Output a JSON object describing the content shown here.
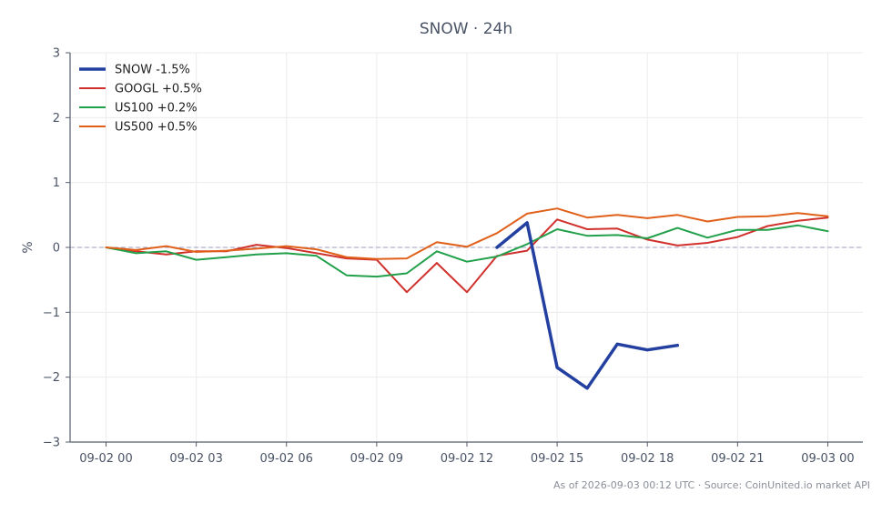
{
  "footer_text": "As of 2026-09-03 00:12 UTC · Source: CoinUnited.io market API",
  "chart_data": {
    "type": "line",
    "title": "SNOW · 24h",
    "xlabel": "",
    "ylabel": "%",
    "ylim": [
      -3,
      3
    ],
    "yticks": [
      3,
      2,
      1,
      0,
      -1,
      -2,
      -3
    ],
    "ytick_labels": [
      "3",
      "2",
      "1",
      "0",
      "−1",
      "−2",
      "−3"
    ],
    "xtick_labels": [
      "09-02 00",
      "09-02 03",
      "09-02 06",
      "09-02 09",
      "09-02 12",
      "09-02 15",
      "09-02 18",
      "09-02 21",
      "09-03 00"
    ],
    "x_hours": [
      0,
      1,
      2,
      3,
      4,
      5,
      6,
      7,
      8,
      9,
      10,
      11,
      12,
      13,
      14,
      15,
      16,
      17,
      18,
      19,
      20,
      21,
      22,
      23,
      24
    ],
    "grid": true,
    "zero_line": true,
    "legend_position": "top-left",
    "series": [
      {
        "name": "SNOW -1.5%",
        "color": "#2340a0",
        "values": [
          null,
          null,
          null,
          null,
          null,
          null,
          null,
          null,
          null,
          null,
          null,
          null,
          null,
          0.0,
          0.38,
          -1.85,
          -2.17,
          -1.49,
          -1.58,
          -1.51,
          null,
          null,
          null,
          null,
          null
        ]
      },
      {
        "name": "GOOGL +0.5%",
        "color": "#d0312d",
        "values": [
          0.0,
          -0.06,
          -0.11,
          -0.06,
          -0.06,
          0.04,
          -0.01,
          -0.09,
          -0.17,
          -0.19,
          -0.69,
          -0.24,
          -0.69,
          -0.13,
          -0.05,
          0.43,
          0.28,
          0.29,
          0.12,
          0.03,
          0.07,
          0.16,
          0.33,
          0.41,
          0.46
        ]
      },
      {
        "name": "US100 +0.2%",
        "color": "#22a04a",
        "values": [
          0.0,
          -0.09,
          -0.06,
          -0.19,
          -0.15,
          -0.11,
          -0.09,
          -0.13,
          -0.43,
          -0.45,
          -0.4,
          -0.06,
          -0.22,
          -0.14,
          0.05,
          0.28,
          0.18,
          0.19,
          0.14,
          0.3,
          0.15,
          0.27,
          0.27,
          0.34,
          0.25
        ]
      },
      {
        "name": "US500 +0.5%",
        "color": "#e0601a",
        "values": [
          0.0,
          -0.04,
          0.02,
          -0.07,
          -0.05,
          -0.02,
          0.02,
          -0.03,
          -0.15,
          -0.18,
          -0.17,
          0.08,
          0.01,
          0.22,
          0.52,
          0.6,
          0.46,
          0.5,
          0.45,
          0.5,
          0.4,
          0.47,
          0.48,
          0.53,
          0.48
        ]
      }
    ]
  }
}
